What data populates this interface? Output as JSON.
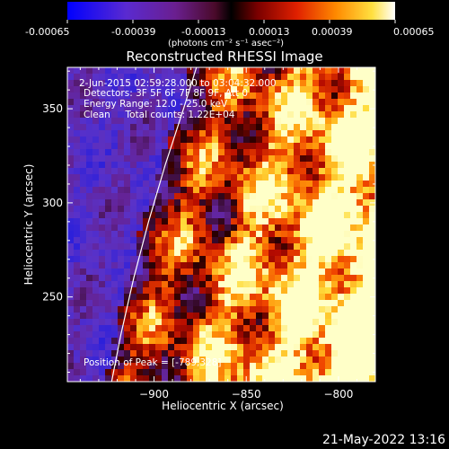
{
  "colorbar": {
    "ticks": [
      "-0.00065",
      "-0.00039",
      "-0.00013",
      "0.00013",
      "0.00039",
      "0.00065"
    ],
    "unit_label": "(photons cm⁻² s⁻¹ asec⁻²)",
    "range": [
      -0.00065,
      0.00065
    ]
  },
  "chart_data": {
    "type": "heatmap",
    "title": "Reconstructed RHESSI Image",
    "xlabel": "Heliocentric X (arcsec)",
    "ylabel": "Heliocentric Y (arcsec)",
    "xlim": [
      -947,
      -780
    ],
    "ylim": [
      205,
      372
    ],
    "x_ticks": [
      -900,
      -850,
      -800
    ],
    "x_tick_labels": [
      "−900",
      "−850",
      "−800"
    ],
    "y_ticks": [
      250,
      300,
      350
    ],
    "y_tick_labels": [
      "250",
      "300",
      "350"
    ],
    "annotations": [
      "2-Jun-2015 02:59:28.000 to 03:04:32.000",
      "Detectors: 3F 5F 6F 7F 8F 9F, Att 0",
      "Energy Range: 12.0 - 25.0 keV",
      "Clean     Total counts: 1.22E+04",
      "Position of Peak = [-789,328]"
    ],
    "limb_curve": [
      [
        -923,
        205
      ],
      [
        -918,
        230
      ],
      [
        -911,
        260
      ],
      [
        -903,
        290
      ],
      [
        -894,
        320
      ],
      [
        -884,
        350
      ],
      [
        -877,
        372
      ]
    ]
  },
  "footer": {
    "timestamp": "21-May-2022 13:16"
  }
}
